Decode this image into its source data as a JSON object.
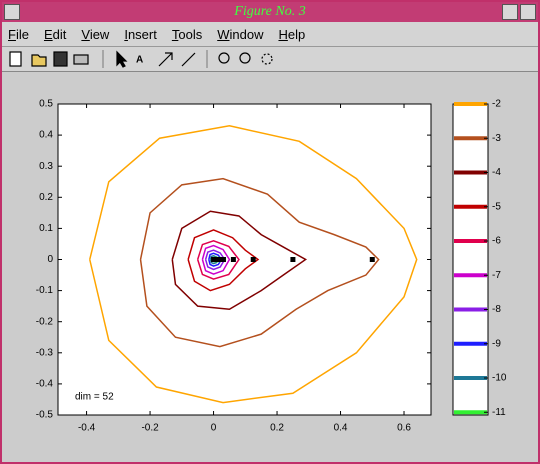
{
  "window": {
    "title": "Figure No. 3",
    "menu": [
      "File",
      "Edit",
      "View",
      "Insert",
      "Tools",
      "Window",
      "Help"
    ]
  },
  "chart_data": {
    "type": "contour",
    "xlim": [
      -0.49,
      0.685
    ],
    "ylim": [
      -0.5,
      0.5
    ],
    "xticks": [
      -0.4,
      -0.2,
      0,
      0.2,
      0.4,
      0.6
    ],
    "yticks": [
      0.5,
      0.4,
      0.3,
      0.2,
      0.1,
      0,
      -0.1,
      -0.2,
      -0.3,
      -0.4,
      -0.5
    ],
    "annotation": "dim = 52",
    "series": [
      {
        "level": -2,
        "color": "#ffa500",
        "x": [
          -0.39,
          -0.33,
          -0.17,
          0.05,
          0.27,
          0.45,
          0.6,
          0.64,
          0.6,
          0.45,
          0.25,
          0.03,
          -0.18,
          -0.33,
          -0.39
        ],
        "y": [
          0,
          0.25,
          0.39,
          0.43,
          0.38,
          0.26,
          0.1,
          0,
          -0.12,
          -0.3,
          -0.43,
          -0.46,
          -0.41,
          -0.26,
          0
        ]
      },
      {
        "level": -3,
        "color": "#b4501e",
        "x": [
          -0.23,
          -0.2,
          -0.1,
          0.03,
          0.17,
          0.27,
          0.38,
          0.48,
          0.52,
          0.48,
          0.36,
          0.26,
          0.15,
          0.02,
          -0.12,
          -0.21,
          -0.23
        ],
        "y": [
          0,
          0.15,
          0.24,
          0.26,
          0.21,
          0.12,
          0.08,
          0.04,
          0,
          -0.05,
          -0.1,
          -0.16,
          -0.24,
          -0.28,
          -0.25,
          -0.15,
          0
        ]
      },
      {
        "level": -4,
        "color": "#800000",
        "x": [
          -0.13,
          -0.1,
          -0.01,
          0.08,
          0.15,
          0.22,
          0.29,
          0.22,
          0.15,
          0.05,
          -0.05,
          -0.12,
          -0.13
        ],
        "y": [
          0,
          0.1,
          0.155,
          0.14,
          0.08,
          0.04,
          0,
          -0.05,
          -0.1,
          -0.16,
          -0.15,
          -0.08,
          0
        ]
      },
      {
        "level": -5,
        "color": "#c00000",
        "x": [
          -0.08,
          -0.06,
          0,
          0.06,
          0.1,
          0.14,
          0.1,
          0.05,
          -0.01,
          -0.06,
          -0.08
        ],
        "y": [
          0,
          0.07,
          0.095,
          0.07,
          0.03,
          0,
          -0.03,
          -0.08,
          -0.1,
          -0.07,
          0
        ]
      },
      {
        "level": -6,
        "color": "#e0004d",
        "x": [
          -0.05,
          -0.035,
          0,
          0.048,
          0.08,
          0.048,
          0,
          -0.035,
          -0.05
        ],
        "y": [
          0,
          0.048,
          0.06,
          0.042,
          0,
          -0.048,
          -0.063,
          -0.048,
          0
        ]
      },
      {
        "level": -7,
        "color": "#cc00cc",
        "x": [
          -0.035,
          -0.025,
          0,
          0.03,
          0.05,
          0.03,
          0,
          -0.025,
          -0.035
        ],
        "y": [
          0,
          0.036,
          0.045,
          0.032,
          0,
          -0.036,
          -0.047,
          -0.036,
          0
        ]
      },
      {
        "level": -8,
        "color": "#8a1ee6",
        "x": [
          -0.025,
          -0.018,
          0,
          0.021,
          0.035,
          0.021,
          0,
          -0.018,
          -0.025
        ],
        "y": [
          0,
          0.024,
          0.03,
          0.021,
          0,
          -0.024,
          -0.032,
          -0.024,
          0
        ]
      },
      {
        "level": -9,
        "color": "#1e1eff",
        "x": [
          -0.015,
          -0.011,
          0,
          0.015,
          0.025,
          0.015,
          0,
          -0.011,
          -0.015
        ],
        "y": [
          0,
          0.016,
          0.02,
          0.014,
          0,
          -0.016,
          -0.021,
          -0.016,
          0
        ]
      },
      {
        "level": -10,
        "color": "#1e7896",
        "x": [
          -0.01,
          -0.007,
          0,
          0.009,
          0.015,
          0.009,
          0,
          -0.007,
          -0.01
        ],
        "y": [
          0,
          0.01,
          0.012,
          0.008,
          0,
          -0.01,
          -0.013,
          -0.01,
          0
        ]
      },
      {
        "level": -11,
        "color": "#32f032",
        "x": [
          -0.005,
          0,
          0.01,
          0.03,
          0.035,
          0.03,
          0.01,
          0,
          -0.005
        ],
        "y": [
          0,
          0.006,
          0.007,
          0.005,
          0,
          -0.005,
          -0.007,
          -0.006,
          0
        ]
      }
    ],
    "points": {
      "color": "#000000",
      "x": [
        0,
        0.015625,
        0.03125,
        0.0625,
        0.125,
        0.25,
        0.5
      ],
      "y": [
        0,
        0,
        0,
        0,
        0,
        0,
        0
      ]
    },
    "colorbar": {
      "clim": [
        -11.08,
        -2
      ]
    }
  }
}
